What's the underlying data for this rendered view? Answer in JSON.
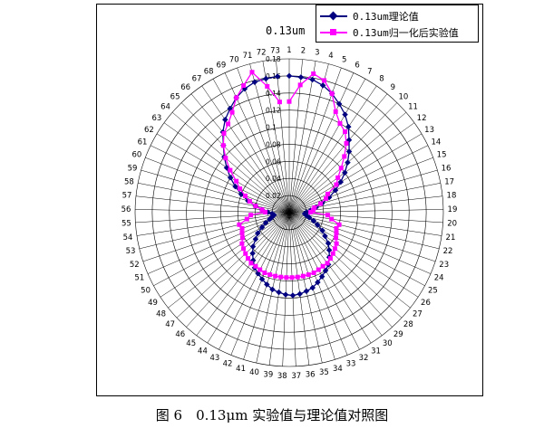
{
  "chart_data": {
    "type": "polar-line",
    "title": "0.13um",
    "spoke_labels": [
      "1",
      "2",
      "3",
      "4",
      "5",
      "6",
      "7",
      "8",
      "9",
      "10",
      "11",
      "12",
      "13",
      "14",
      "15",
      "16",
      "17",
      "18",
      "19",
      "20",
      "21",
      "22",
      "23",
      "24",
      "25",
      "26",
      "27",
      "28",
      "29",
      "30",
      "31",
      "32",
      "33",
      "34",
      "35",
      "36",
      "37",
      "38",
      "39",
      "40",
      "41",
      "42",
      "43",
      "44",
      "45",
      "46",
      "47",
      "48",
      "49",
      "50",
      "51",
      "52",
      "53",
      "54",
      "55",
      "56",
      "57",
      "58",
      "59",
      "60",
      "61",
      "62",
      "63",
      "64",
      "65",
      "66",
      "67",
      "68",
      "69",
      "70",
      "71",
      "72",
      "73"
    ],
    "radial_ticks": [
      0.02,
      0.04,
      0.06,
      0.08,
      0.1,
      0.12,
      0.14,
      0.16,
      0.18
    ],
    "radial_range": [
      0,
      0.18
    ],
    "grid": true,
    "legend_placement": "top-right",
    "series": [
      {
        "name": "0.13um理论值",
        "color": "#000080",
        "marker": "diamond",
        "values": [
          0.16,
          0.159,
          0.158,
          0.154,
          0.148,
          0.14,
          0.132,
          0.122,
          0.11,
          0.1,
          0.09,
          0.08,
          0.07,
          0.06,
          0.05,
          0.04,
          0.032,
          0.025,
          0.02,
          0.018,
          0.02,
          0.024,
          0.03,
          0.036,
          0.044,
          0.05,
          0.058,
          0.064,
          0.07,
          0.076,
          0.08,
          0.084,
          0.088,
          0.092,
          0.094,
          0.096,
          0.097,
          0.096,
          0.094,
          0.092,
          0.088,
          0.084,
          0.08,
          0.076,
          0.07,
          0.064,
          0.058,
          0.05,
          0.044,
          0.036,
          0.03,
          0.024,
          0.02,
          0.018,
          0.02,
          0.025,
          0.032,
          0.04,
          0.05,
          0.06,
          0.07,
          0.08,
          0.09,
          0.1,
          0.11,
          0.122,
          0.132,
          0.14,
          0.148,
          0.154,
          0.158,
          0.159,
          0.16
        ]
      },
      {
        "name": "0.13um归一化后实验值",
        "color": "#ff00ff",
        "marker": "square",
        "values": [
          0.13,
          0.15,
          0.165,
          0.16,
          0.148,
          0.13,
          0.12,
          0.115,
          0.105,
          0.092,
          0.08,
          0.07,
          0.064,
          0.05,
          0.046,
          0.038,
          0.03,
          0.028,
          0.025,
          0.045,
          0.05,
          0.06,
          0.058,
          0.06,
          0.062,
          0.066,
          0.068,
          0.07,
          0.072,
          0.074,
          0.074,
          0.075,
          0.076,
          0.076,
          0.076,
          0.076,
          0.076,
          0.076,
          0.076,
          0.076,
          0.076,
          0.076,
          0.075,
          0.074,
          0.074,
          0.072,
          0.07,
          0.068,
          0.066,
          0.062,
          0.06,
          0.058,
          0.06,
          0.05,
          0.045,
          0.028,
          0.032,
          0.04,
          0.048,
          0.055,
          0.064,
          0.072,
          0.085,
          0.098,
          0.11,
          0.12,
          0.126,
          0.135,
          0.148,
          0.158,
          0.17,
          0.15,
          0.13
        ]
      }
    ]
  },
  "caption": "图 6　0.13μm 实验值与理论值对照图"
}
